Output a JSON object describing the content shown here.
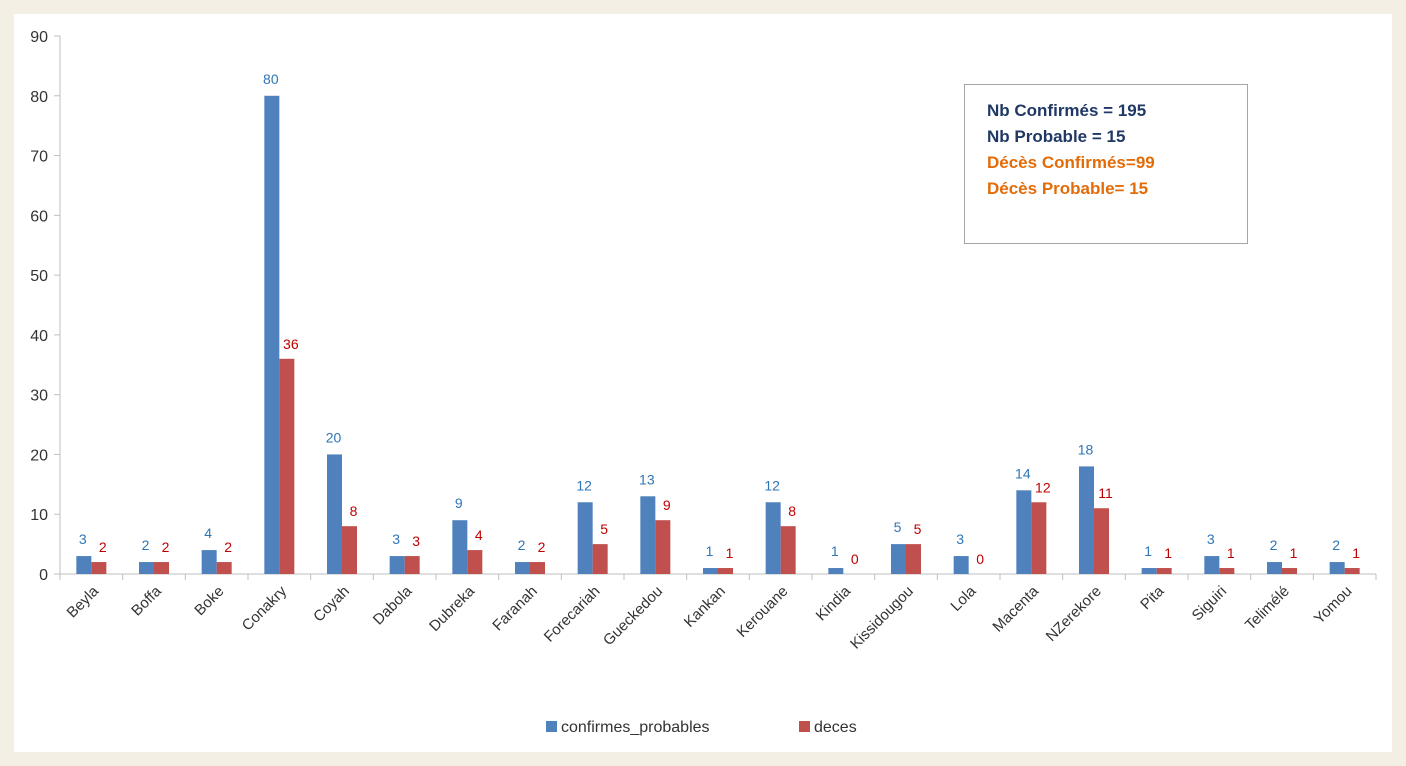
{
  "chart_data": {
    "type": "bar",
    "categories": [
      "Beyla",
      "Boffa",
      "Boke",
      "Conakry",
      "Coyah",
      "Dabola",
      "Dubreka",
      "Faranah",
      "Forecariah",
      "Gueckedou",
      "Kankan",
      "Kerouane",
      "Kindia",
      "Kissidougou",
      "Lola",
      "Macenta",
      "NZerekore",
      "Pita",
      "Siguiri",
      "Telimélé",
      "Yomou"
    ],
    "series": [
      {
        "name": "confirmes_probables",
        "color": "#4f81bd",
        "label_color": "#2e75b6",
        "values": [
          3,
          2,
          4,
          80,
          20,
          3,
          9,
          2,
          12,
          13,
          1,
          12,
          1,
          5,
          3,
          14,
          18,
          1,
          3,
          2,
          2
        ]
      },
      {
        "name": "deces",
        "color": "#c0504d",
        "label_color": "#c00000",
        "values": [
          2,
          2,
          2,
          36,
          8,
          3,
          4,
          2,
          5,
          9,
          1,
          8,
          0,
          5,
          0,
          12,
          11,
          1,
          1,
          1,
          1
        ]
      }
    ],
    "ylim": [
      0,
      90
    ],
    "yticks": [
      0,
      10,
      20,
      30,
      40,
      50,
      60,
      70,
      80,
      90
    ],
    "legend_position": "bottom",
    "grid": false
  },
  "annotation": {
    "lines": [
      {
        "text": "Nb Confirmés = 195",
        "color": "#1f3864"
      },
      {
        "text": "Nb Probable = 15",
        "color": "#1f3864"
      },
      {
        "text": "Décès Confirmés=99",
        "color": "#e36c09"
      },
      {
        "text": "Décès Probable= 15",
        "color": "#e36c09"
      }
    ]
  }
}
